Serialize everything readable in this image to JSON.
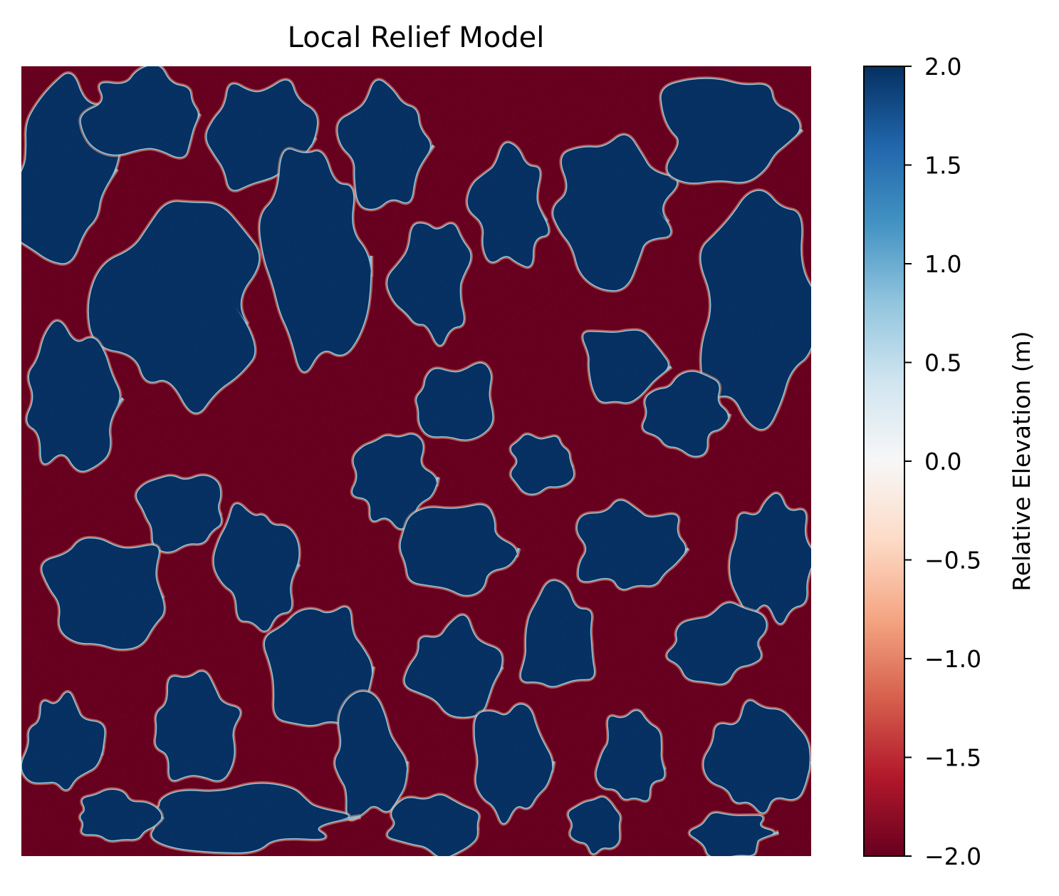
{
  "chart_data": {
    "type": "heatmap",
    "title": "Local Relief Model",
    "axes_visible": false,
    "colormap": "RdBu",
    "colormap_stops": [
      "#67001f",
      "#b2182b",
      "#d6604d",
      "#f4a582",
      "#fddbc7",
      "#f7f7f7",
      "#d1e5f0",
      "#92c5de",
      "#4393c3",
      "#2166ac",
      "#053061"
    ],
    "value_range": [
      -2.0,
      2.0
    ],
    "colorbar": {
      "label": "Relative Elevation (m)",
      "ticks": [
        2.0,
        1.5,
        1.0,
        0.5,
        0.0,
        -0.5,
        -1.0,
        -1.5,
        -2.0
      ],
      "tick_labels": [
        "2.0",
        "1.5",
        "1.0",
        "0.5",
        "0.0",
        "−0.5",
        "−1.0",
        "−1.5",
        "−2.0"
      ],
      "placement": "right"
    },
    "dominant_low_color": "#67001f",
    "dominant_high_color": "#053061"
  }
}
